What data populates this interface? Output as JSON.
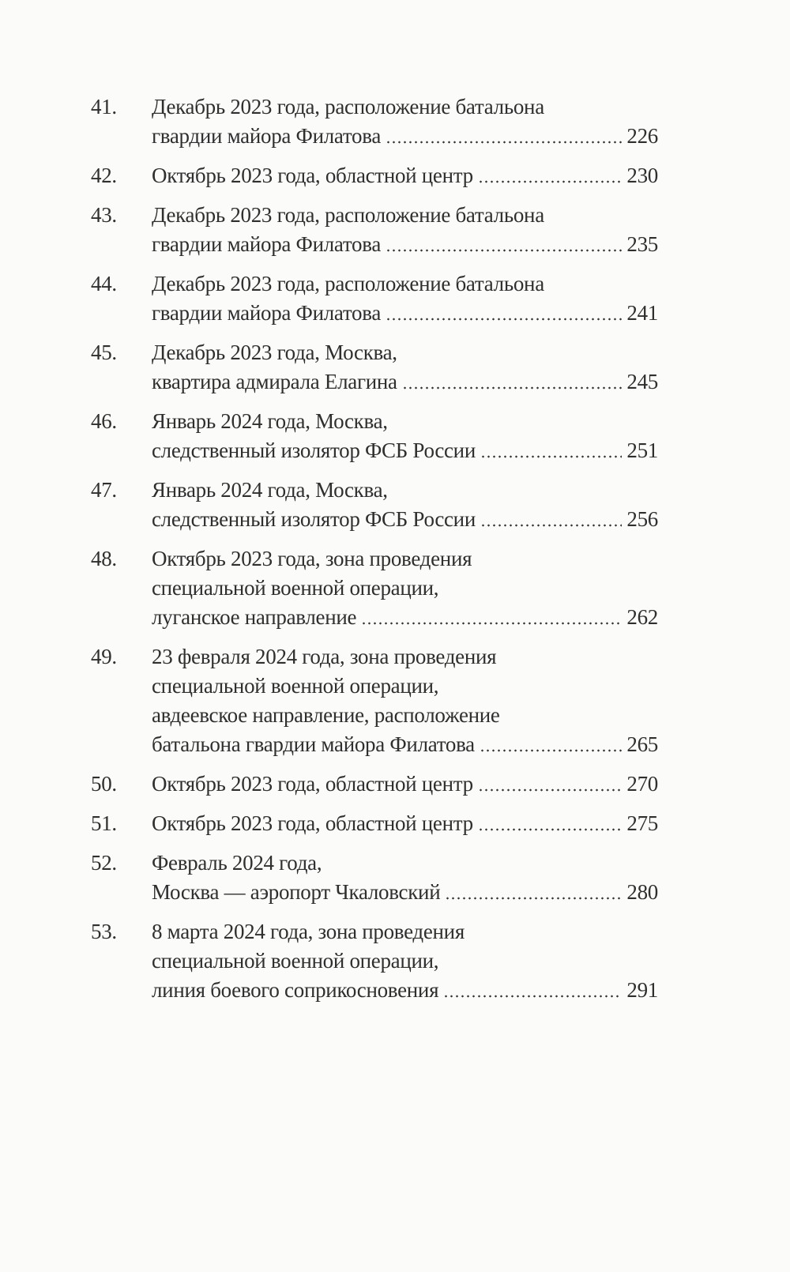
{
  "entries": [
    {
      "number": "41.",
      "lines": [
        "Декабрь 2023 года, расположение батальона",
        "гвардии майора Филатова"
      ],
      "page": "226"
    },
    {
      "number": "42.",
      "lines": [
        "Октябрь 2023 года, областной центр"
      ],
      "page": "230"
    },
    {
      "number": "43.",
      "lines": [
        "Декабрь 2023 года, расположение батальона",
        "гвардии майора Филатова"
      ],
      "page": "235"
    },
    {
      "number": "44.",
      "lines": [
        "Декабрь 2023 года, расположение батальона",
        "гвардии майора Филатова"
      ],
      "page": "241"
    },
    {
      "number": "45.",
      "lines": [
        "Декабрь 2023 года, Москва,",
        "квартира адмирала Елагина"
      ],
      "page": "245"
    },
    {
      "number": "46.",
      "lines": [
        "Январь 2024 года, Москва,",
        "следственный изолятор ФСБ России"
      ],
      "page": "251"
    },
    {
      "number": "47.",
      "lines": [
        "Январь 2024 года, Москва,",
        "следственный изолятор ФСБ России"
      ],
      "page": "256"
    },
    {
      "number": "48.",
      "lines": [
        "Октябрь 2023 года, зона проведения",
        "специальной военной операции,",
        "луганское направление"
      ],
      "page": "262"
    },
    {
      "number": "49.",
      "lines": [
        "23 февраля 2024 года, зона проведения",
        "специальной военной операции,",
        "авдеевское направление, расположение",
        "батальона гвардии майора Филатова"
      ],
      "page": "265"
    },
    {
      "number": "50.",
      "lines": [
        "Октябрь 2023 года, областной центр"
      ],
      "page": "270"
    },
    {
      "number": "51.",
      "lines": [
        "Октябрь 2023 года, областной центр"
      ],
      "page": "275"
    },
    {
      "number": "52.",
      "lines": [
        "Февраль 2024 года,",
        "Москва — аэропорт Чкаловский"
      ],
      "page": "280"
    },
    {
      "number": "53.",
      "lines": [
        "8 марта 2024 года, зона проведения",
        "специальной военной операции,",
        "линия боевого соприкосновения"
      ],
      "page": "291"
    }
  ]
}
